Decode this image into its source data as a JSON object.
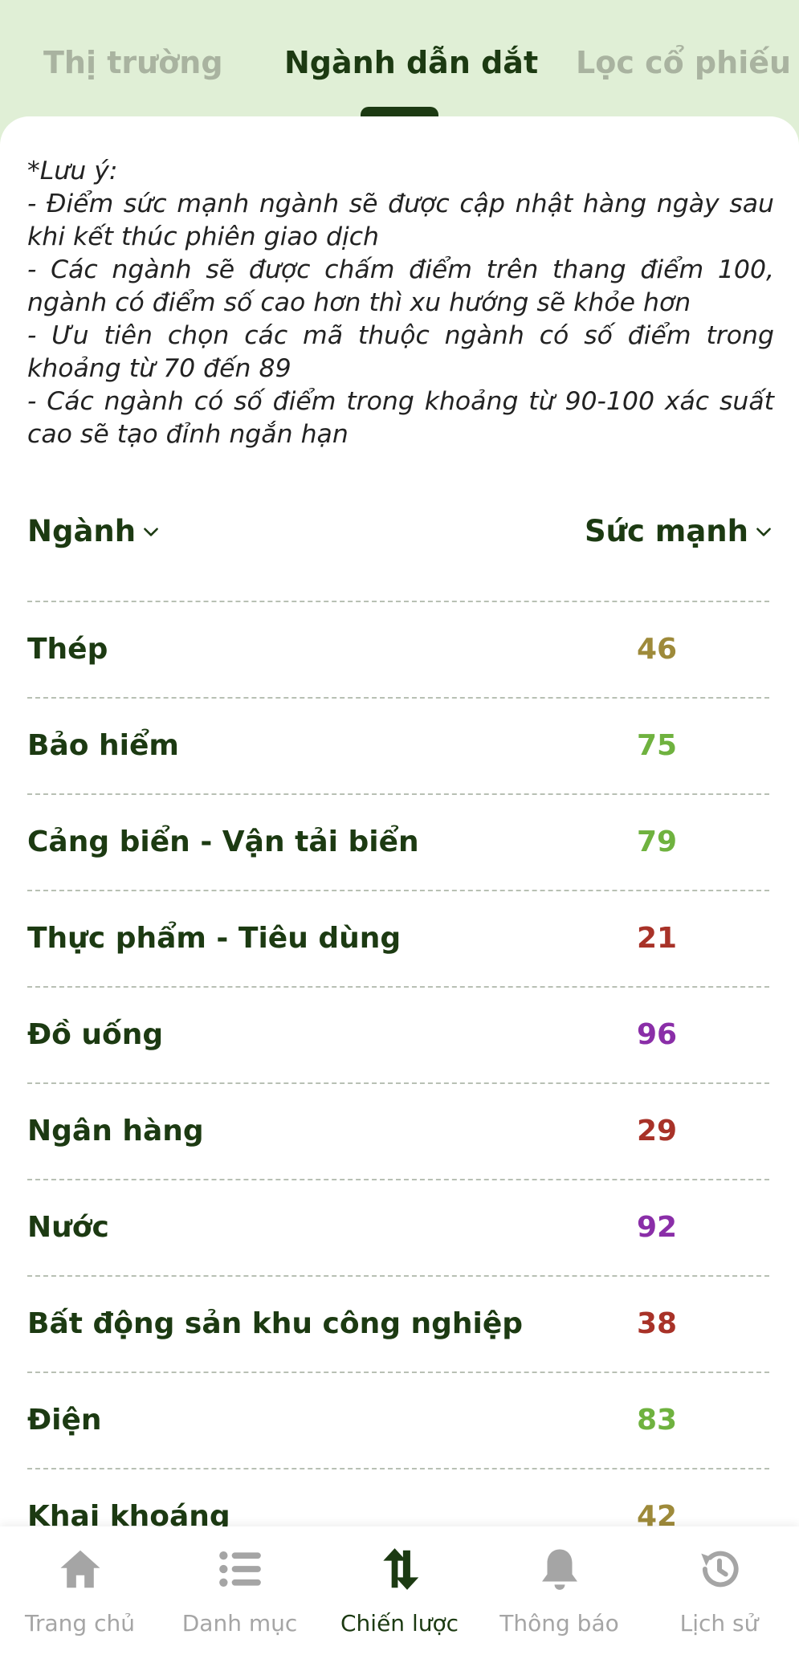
{
  "tabs": [
    {
      "label": "Thị trường"
    },
    {
      "label": "Ngành dẫn dắt"
    },
    {
      "label": "Lọc cổ phiếu"
    }
  ],
  "note": {
    "title": "*Lưu ý:",
    "lines": [
      "- Điểm sức mạnh ngành sẽ được cập nhật hàng ngày sau khi kết thúc phiên giao dịch",
      "- Các ngành sẽ được chấm điểm trên thang điểm 100, ngành có điểm số cao hơn thì xu hướng sẽ khỏe hơn",
      "- Ưu tiên chọn các mã thuộc ngành có số điểm trong khoảng từ 70 đến 89",
      "- Các ngành có số điểm trong khoảng từ 90-100 xác suất cao sẽ tạo đỉnh ngắn hạn"
    ]
  },
  "table": {
    "col_sector": "Ngành",
    "col_strength": "Sức mạnh",
    "rows": [
      {
        "name": "Thép",
        "score": "46",
        "color": "#9e8a3a"
      },
      {
        "name": "Bảo hiểm",
        "score": "75",
        "color": "#6fb23f"
      },
      {
        "name": "Cảng biển - Vận tải biển",
        "score": "79",
        "color": "#6fb23f"
      },
      {
        "name": "Thực phẩm - Tiêu dùng",
        "score": "21",
        "color": "#a83228"
      },
      {
        "name": "Đồ uống",
        "score": "96",
        "color": "#8a2ea8"
      },
      {
        "name": "Ngân hàng",
        "score": "29",
        "color": "#a83228"
      },
      {
        "name": "Nước",
        "score": "92",
        "color": "#8a2ea8"
      },
      {
        "name": "Bất động sản khu công nghiệp",
        "score": "38",
        "color": "#a83228"
      },
      {
        "name": "Điện",
        "score": "83",
        "color": "#6fb23f"
      },
      {
        "name": "Khai khoáng",
        "score": "42",
        "color": "#9e8a3a"
      }
    ]
  },
  "nav": {
    "home": "Trang chủ",
    "catalog": "Danh mục",
    "strategy": "Chiến lược",
    "notifications": "Thông báo",
    "history": "Lịch sử"
  },
  "colors": {
    "accent": "#1c3a12",
    "header_bg": "#e0efd6",
    "inactive": "#a5a5a5"
  }
}
